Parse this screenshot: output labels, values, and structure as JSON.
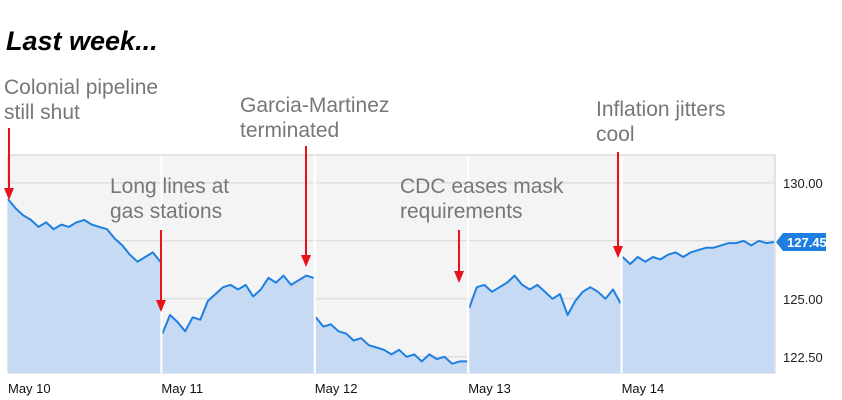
{
  "chart_data": {
    "type": "area",
    "title": "Last week...",
    "xlabel": "",
    "ylabel": "",
    "ylim": [
      121.8,
      131.2
    ],
    "y_ticks": [
      130.0,
      127.5,
      125.0,
      122.5
    ],
    "y_tick_labels": [
      "130.00",
      "127.50",
      "125.00",
      "122.50"
    ],
    "x_tick_labels": [
      "May 10",
      "May 11",
      "May 12",
      "May 13",
      "May 14"
    ],
    "last_value_label": "127.45",
    "grid": true,
    "colors": {
      "line": "#1f7fe0",
      "fill": "#c6daf3",
      "badge": "#1f7fe0",
      "arrow": "#e8121a",
      "annotation": "#777777"
    },
    "sessions": [
      {
        "date": "May 10",
        "values": [
          129.3,
          128.9,
          128.6,
          128.4,
          128.1,
          128.3,
          128.0,
          128.2,
          128.1,
          128.3,
          128.4,
          128.2,
          128.1,
          128.0,
          127.6,
          127.3,
          126.9,
          126.6,
          126.8,
          127.0,
          126.6
        ]
      },
      {
        "date": "May 11",
        "values": [
          123.5,
          124.3,
          124.0,
          123.6,
          124.2,
          124.1,
          124.9,
          125.2,
          125.5,
          125.6,
          125.4,
          125.6,
          125.1,
          125.4,
          125.9,
          125.7,
          126.0,
          125.6,
          125.8,
          126.0,
          125.9
        ]
      },
      {
        "date": "May 12",
        "values": [
          124.2,
          123.8,
          123.9,
          123.6,
          123.5,
          123.2,
          123.3,
          123.0,
          122.9,
          122.8,
          122.6,
          122.8,
          122.5,
          122.6,
          122.3,
          122.6,
          122.4,
          122.5,
          122.2,
          122.3,
          122.3
        ]
      },
      {
        "date": "May 13",
        "values": [
          124.6,
          125.5,
          125.6,
          125.3,
          125.5,
          125.7,
          126.0,
          125.6,
          125.4,
          125.6,
          125.3,
          125.0,
          125.2,
          124.3,
          124.9,
          125.3,
          125.5,
          125.3,
          125.0,
          125.4,
          124.8
        ]
      },
      {
        "date": "May 14",
        "values": [
          126.8,
          126.5,
          126.8,
          126.6,
          126.8,
          126.7,
          126.9,
          127.0,
          126.8,
          127.0,
          127.1,
          127.2,
          127.2,
          127.3,
          127.4,
          127.4,
          127.5,
          127.3,
          127.5,
          127.4,
          127.45
        ]
      }
    ],
    "annotations": [
      {
        "lines": [
          "Colonial pipeline",
          "still shut"
        ],
        "session": 0
      },
      {
        "lines": [
          "Long lines at",
          "gas stations"
        ],
        "session": 1
      },
      {
        "lines": [
          "Garcia-Martinez",
          "terminated"
        ],
        "session": 2
      },
      {
        "lines": [
          "CDC eases mask",
          "requirements"
        ],
        "session": 3
      },
      {
        "lines": [
          "Inflation jitters",
          "cool"
        ],
        "session": 4
      }
    ]
  }
}
